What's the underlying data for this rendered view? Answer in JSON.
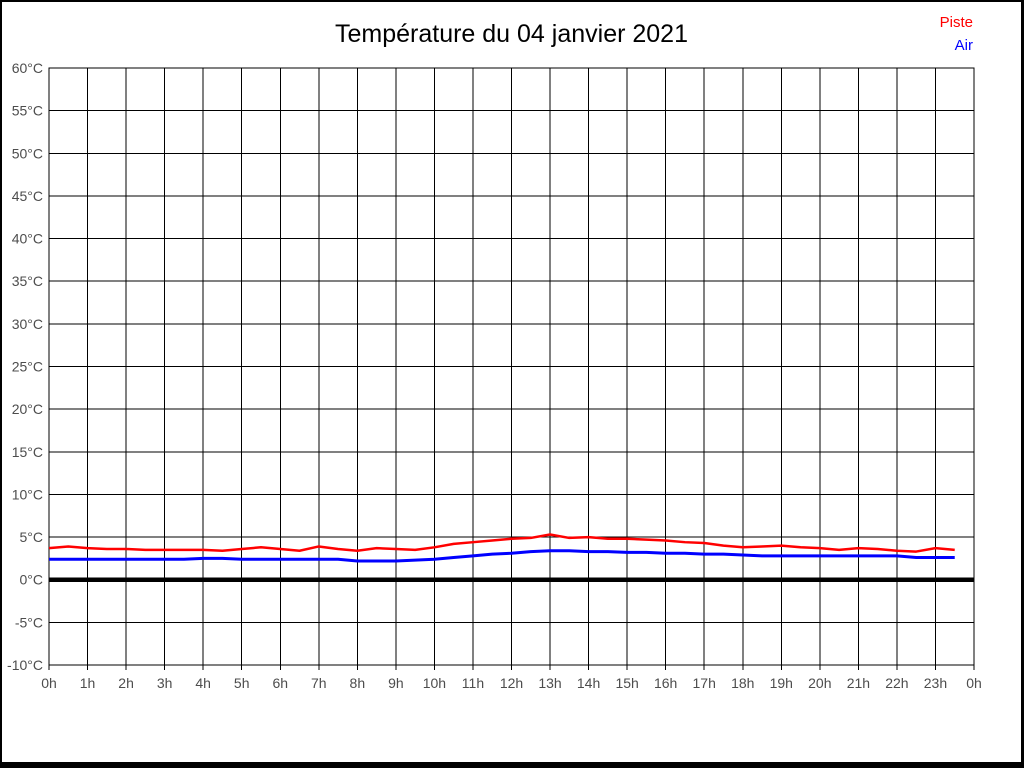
{
  "header": {
    "title": "Température du 04 janvier 2021"
  },
  "legend": {
    "position": "top-right",
    "items": [
      {
        "label": "Piste",
        "color": "#ff0000"
      },
      {
        "label": "Air",
        "color": "#0000ff"
      }
    ]
  },
  "chart_data": {
    "type": "line",
    "title": "Température du 04 janvier 2021",
    "xlabel": "",
    "ylabel": "",
    "x_unit": "hours",
    "y_unit": "°C",
    "xlim": [
      0,
      24
    ],
    "ylim": [
      -10,
      60
    ],
    "grid": true,
    "grid_color": "#000000",
    "tick_label_color": "#4d4d4d",
    "xtick_values": [
      0,
      1,
      2,
      3,
      4,
      5,
      6,
      7,
      8,
      9,
      10,
      11,
      12,
      13,
      14,
      15,
      16,
      17,
      18,
      19,
      20,
      21,
      22,
      23,
      24
    ],
    "xtick_labels": [
      "0h",
      "1h",
      "2h",
      "3h",
      "4h",
      "5h",
      "6h",
      "7h",
      "8h",
      "9h",
      "10h",
      "11h",
      "12h",
      "13h",
      "14h",
      "15h",
      "16h",
      "17h",
      "18h",
      "19h",
      "20h",
      "21h",
      "22h",
      "23h",
      "0h"
    ],
    "ytick_values": [
      60,
      55,
      50,
      45,
      40,
      35,
      30,
      25,
      20,
      15,
      10,
      5,
      0,
      -5,
      -10
    ],
    "ytick_labels": [
      "60°C",
      "55°C",
      "50°C",
      "45°C",
      "40°C",
      "35°C",
      "30°C",
      "25°C",
      "20°C",
      "15°C",
      "10°C",
      "5°C",
      "0°C",
      "-5°C",
      "-10°C"
    ],
    "zero_line": {
      "value": 0,
      "color": "#000000",
      "width": 4.5
    },
    "x": [
      0,
      0.5,
      1,
      1.5,
      2,
      2.5,
      3,
      3.5,
      4,
      4.5,
      5,
      5.5,
      6,
      6.5,
      7,
      7.5,
      8,
      8.5,
      9,
      9.5,
      10,
      10.5,
      11,
      11.5,
      12,
      12.5,
      13,
      13.5,
      14,
      14.5,
      15,
      15.5,
      16,
      16.5,
      17,
      17.5,
      18,
      18.5,
      19,
      19.5,
      20,
      20.5,
      21,
      21.5,
      22,
      22.5,
      23,
      23.5
    ],
    "series": [
      {
        "name": "Piste",
        "color": "#ff0000",
        "width": 2.5,
        "values": [
          3.7,
          3.9,
          3.7,
          3.6,
          3.6,
          3.5,
          3.5,
          3.5,
          3.5,
          3.4,
          3.6,
          3.8,
          3.6,
          3.4,
          3.9,
          3.6,
          3.4,
          3.7,
          3.6,
          3.5,
          3.8,
          4.2,
          4.4,
          4.6,
          4.8,
          4.9,
          5.3,
          4.9,
          5.0,
          4.8,
          4.8,
          4.7,
          4.6,
          4.4,
          4.3,
          4.0,
          3.8,
          3.9,
          4.0,
          3.8,
          3.7,
          3.5,
          3.7,
          3.6,
          3.4,
          3.3,
          3.7,
          3.5
        ]
      },
      {
        "name": "Air",
        "color": "#0000ff",
        "width": 3,
        "values": [
          2.4,
          2.4,
          2.4,
          2.4,
          2.4,
          2.4,
          2.4,
          2.4,
          2.5,
          2.5,
          2.4,
          2.4,
          2.4,
          2.4,
          2.4,
          2.4,
          2.2,
          2.2,
          2.2,
          2.3,
          2.4,
          2.6,
          2.8,
          3.0,
          3.1,
          3.3,
          3.4,
          3.4,
          3.3,
          3.3,
          3.2,
          3.2,
          3.1,
          3.1,
          3.0,
          3.0,
          2.9,
          2.8,
          2.8,
          2.8,
          2.8,
          2.8,
          2.8,
          2.8,
          2.8,
          2.6,
          2.6,
          2.6
        ]
      }
    ]
  }
}
